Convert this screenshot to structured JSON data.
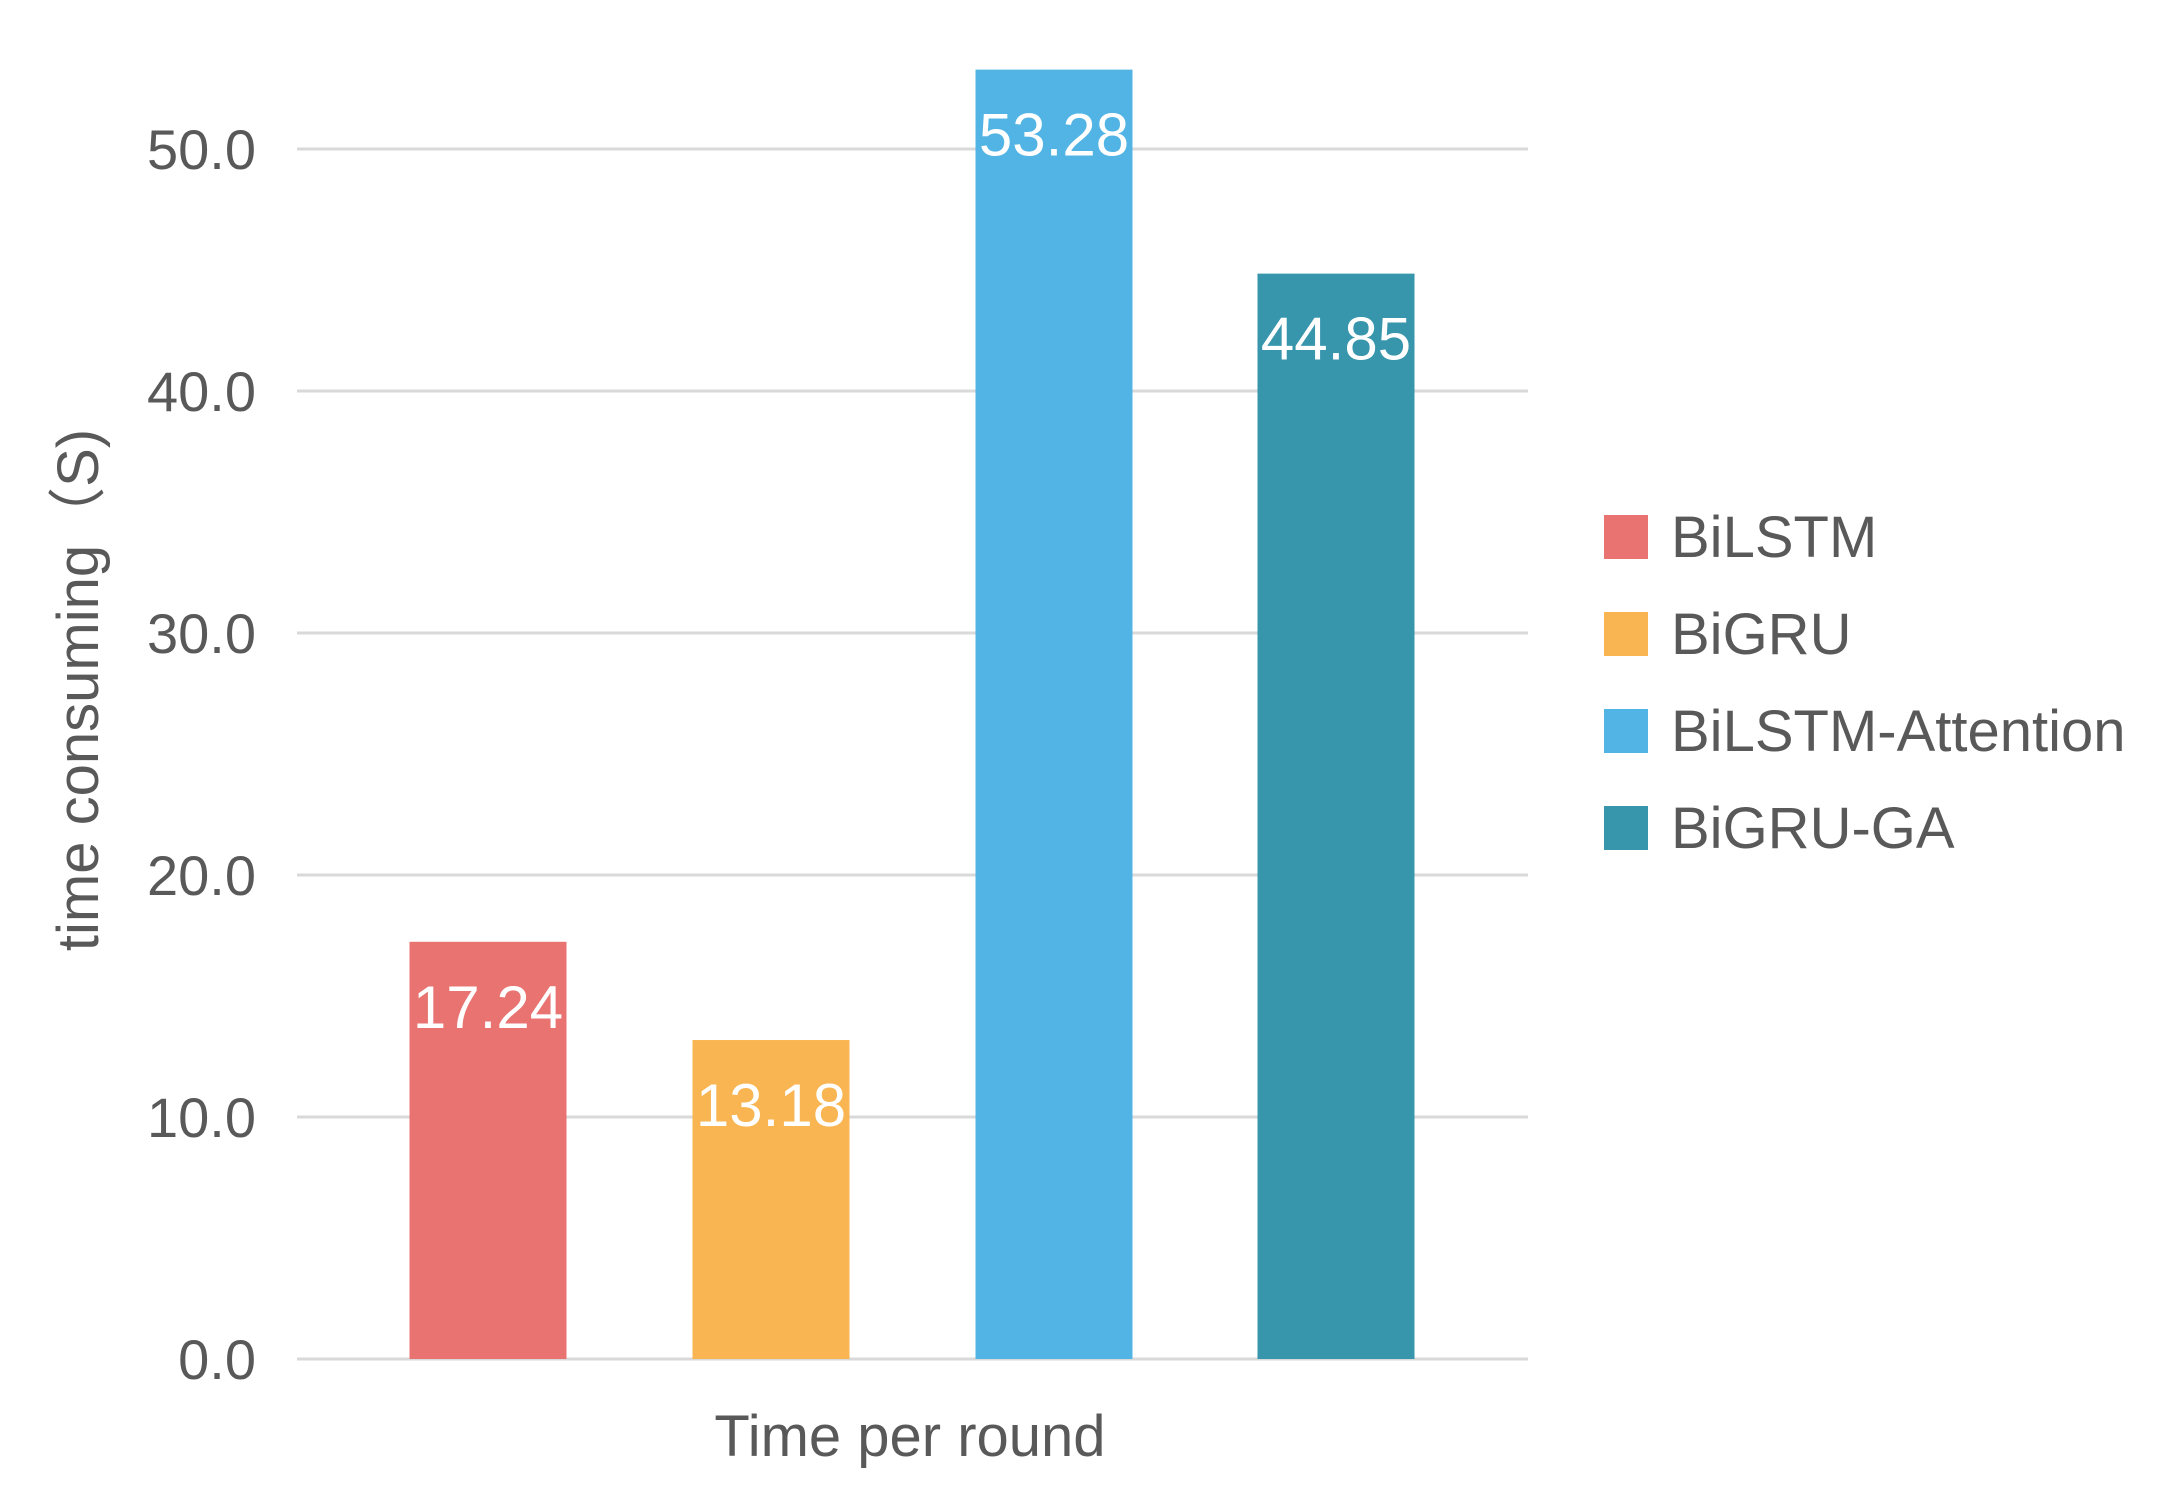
{
  "chart_data": {
    "type": "bar",
    "categories": [
      "Time per round"
    ],
    "series": [
      {
        "name": "BiLSTM",
        "values": [
          17.24
        ],
        "color": "#E87370"
      },
      {
        "name": "BiGRU",
        "values": [
          13.18
        ],
        "color": "#F9B551"
      },
      {
        "name": "BiLSTM-Attention",
        "values": [
          53.28
        ],
        "color": "#52B4E4"
      },
      {
        "name": "BiGRU-GA",
        "values": [
          44.85
        ],
        "color": "#3795AC"
      }
    ],
    "data_labels": [
      "17.24",
      "13.18",
      "53.28",
      "44.85"
    ],
    "title": "",
    "xlabel": "Time per round",
    "ylabel": "time consuming（S)",
    "ylim": [
      0,
      50
    ],
    "yticks": [
      0,
      10,
      20,
      30,
      40,
      50
    ],
    "ytick_labels": [
      "0.0",
      "10.0",
      "20.0",
      "30.0",
      "40.0",
      "50.0"
    ],
    "grid": true,
    "legend_position": "right"
  }
}
